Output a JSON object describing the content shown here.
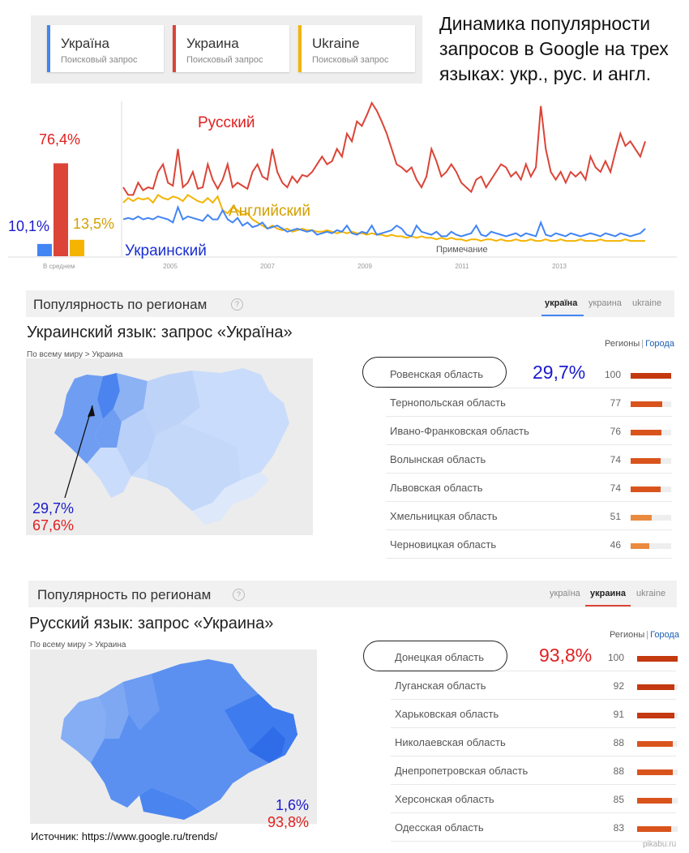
{
  "terms": [
    {
      "name": "Україна",
      "sub": "Поисковый запрос",
      "color": "#4285f4"
    },
    {
      "name": "Украина",
      "sub": "Поисковый запрос",
      "color": "#db4437"
    },
    {
      "name": "Ukraine",
      "sub": "Поисковый запрос",
      "color": "#f4b400"
    }
  ],
  "headline": [
    "Динамика популярности",
    "запросов в Google на трех",
    "языках: укр., рус. и англ."
  ],
  "chart_data": {
    "type": "line",
    "avg_label": "В среднем",
    "averages": [
      {
        "label": "10,1%",
        "value": 10.1,
        "color": "#4285f4"
      },
      {
        "label": "76,4%",
        "value": 76.4,
        "color": "#db4437"
      },
      {
        "label": "13,5%",
        "value": 13.5,
        "color": "#f4b400"
      }
    ],
    "x_ticks": [
      "2005",
      "2007",
      "2009",
      "2011",
      "2013"
    ],
    "note": "Примечание",
    "series": [
      {
        "name": "Русский",
        "color": "#db4437",
        "label_color": "#e02020",
        "values": [
          45,
          40,
          40,
          48,
          43,
          45,
          44,
          55,
          60,
          48,
          46,
          70,
          45,
          48,
          55,
          44,
          45,
          60,
          50,
          44,
          50,
          60,
          45,
          48,
          46,
          44,
          55,
          60,
          52,
          50,
          70,
          55,
          48,
          45,
          52,
          48,
          53,
          52,
          55,
          60,
          65,
          60,
          62,
          70,
          65,
          80,
          75,
          88,
          85,
          92,
          100,
          95,
          88,
          80,
          70,
          60,
          58,
          55,
          58,
          50,
          45,
          52,
          70,
          62,
          52,
          55,
          60,
          55,
          48,
          45,
          42,
          50,
          52,
          45,
          50,
          55,
          60,
          58,
          52,
          55,
          50,
          60,
          52,
          58,
          98,
          70,
          55,
          50,
          55,
          48,
          55,
          52,
          55,
          50,
          65,
          58,
          55,
          62,
          55,
          68,
          80,
          72,
          75,
          70,
          65,
          75
        ]
      },
      {
        "name": "Английский",
        "color": "#f4b400",
        "label_color": "#d4a000",
        "values": [
          35,
          38,
          36,
          38,
          37,
          38,
          35,
          40,
          38,
          37,
          39,
          38,
          36,
          40,
          38,
          36,
          35,
          38,
          35,
          39,
          30,
          28,
          32,
          30,
          27,
          28,
          24,
          22,
          20,
          18,
          20,
          18,
          17,
          18,
          16,
          17,
          18,
          17,
          17,
          16,
          16,
          17,
          16,
          15,
          16,
          15,
          16,
          15,
          15,
          14,
          15,
          14,
          14,
          13,
          14,
          13,
          13,
          12,
          13,
          12,
          13,
          12,
          12,
          11,
          12,
          11,
          12,
          11,
          11,
          10,
          11,
          11,
          10,
          11,
          11,
          10,
          11,
          10,
          10,
          11,
          10,
          10,
          11,
          10,
          10,
          11,
          10,
          10,
          11,
          10,
          10,
          10,
          11,
          10,
          10,
          10,
          11,
          10,
          10,
          10,
          10,
          11,
          10,
          10,
          10,
          10
        ]
      },
      {
        "name": "Украинский",
        "color": "#4285f4",
        "label_color": "#1a2ed1",
        "values": [
          24,
          25,
          24,
          26,
          24,
          25,
          24,
          26,
          25,
          24,
          22,
          32,
          24,
          26,
          25,
          24,
          23,
          27,
          24,
          24,
          30,
          24,
          22,
          25,
          20,
          22,
          19,
          20,
          22,
          18,
          19,
          20,
          18,
          16,
          17,
          18,
          17,
          16,
          17,
          14,
          15,
          16,
          15,
          17,
          16,
          20,
          15,
          14,
          16,
          15,
          20,
          14,
          15,
          16,
          17,
          20,
          18,
          14,
          13,
          20,
          16,
          15,
          14,
          16,
          13,
          13,
          16,
          14,
          13,
          14,
          15,
          20,
          14,
          13,
          16,
          15,
          14,
          13,
          14,
          15,
          13,
          15,
          14,
          13,
          22,
          14,
          13,
          15,
          14,
          13,
          15,
          14,
          13,
          14,
          15,
          14,
          13,
          15,
          14,
          13,
          15,
          14,
          13,
          14,
          15,
          18
        ]
      }
    ]
  },
  "sections": [
    {
      "title": "Популярность по регионам",
      "tabs": [
        "україна",
        "украина",
        "ukraine"
      ],
      "active_tab": 0,
      "heading": "Украинский язык: запрос «Україна»",
      "heading_color": "#1a1acc",
      "crumb": "По всему миру > Украина",
      "regions_label": "Регионы",
      "cities_label": "Города",
      "rows": [
        {
          "name": "Ровенская область",
          "value": 100
        },
        {
          "name": "Тернопольская область",
          "value": 77
        },
        {
          "name": "Ивано-Франковская область",
          "value": 76
        },
        {
          "name": "Волынская область",
          "value": 74
        },
        {
          "name": "Львовская область",
          "value": 74
        },
        {
          "name": "Хмельницкая область",
          "value": 51
        },
        {
          "name": "Черновицкая область",
          "value": 46
        }
      ],
      "highlight_pct": "29,7%",
      "highlight_color": "#1a1acc",
      "map_pct1": "29,7%",
      "map_pct1_color": "#1a1acc",
      "map_pct2": "67,6%",
      "map_pct2_color": "#e02020"
    },
    {
      "title": "Популярность по регионам",
      "tabs": [
        "україна",
        "украина",
        "ukraine"
      ],
      "active_tab": 1,
      "heading": "Русский язык: запрос «Украина»",
      "heading_color": "#e02020",
      "crumb": "По всему миру > Украина",
      "regions_label": "Регионы",
      "cities_label": "Города",
      "rows": [
        {
          "name": "Донецкая область",
          "value": 100
        },
        {
          "name": "Луганская область",
          "value": 92
        },
        {
          "name": "Харьковская область",
          "value": 91
        },
        {
          "name": "Николаевская область",
          "value": 88
        },
        {
          "name": "Днепропетровская область",
          "value": 88
        },
        {
          "name": "Херсонская область",
          "value": 85
        },
        {
          "name": "Одесская область",
          "value": 83
        }
      ],
      "highlight_pct": "93,8%",
      "highlight_color": "#e02020",
      "map_pct1": "1,6%",
      "map_pct1_color": "#1a1acc",
      "map_pct2": "93,8%",
      "map_pct2_color": "#e02020"
    }
  ],
  "source": "Источник: https://www.google.ru/trends/",
  "watermark": "pikabu.ru"
}
